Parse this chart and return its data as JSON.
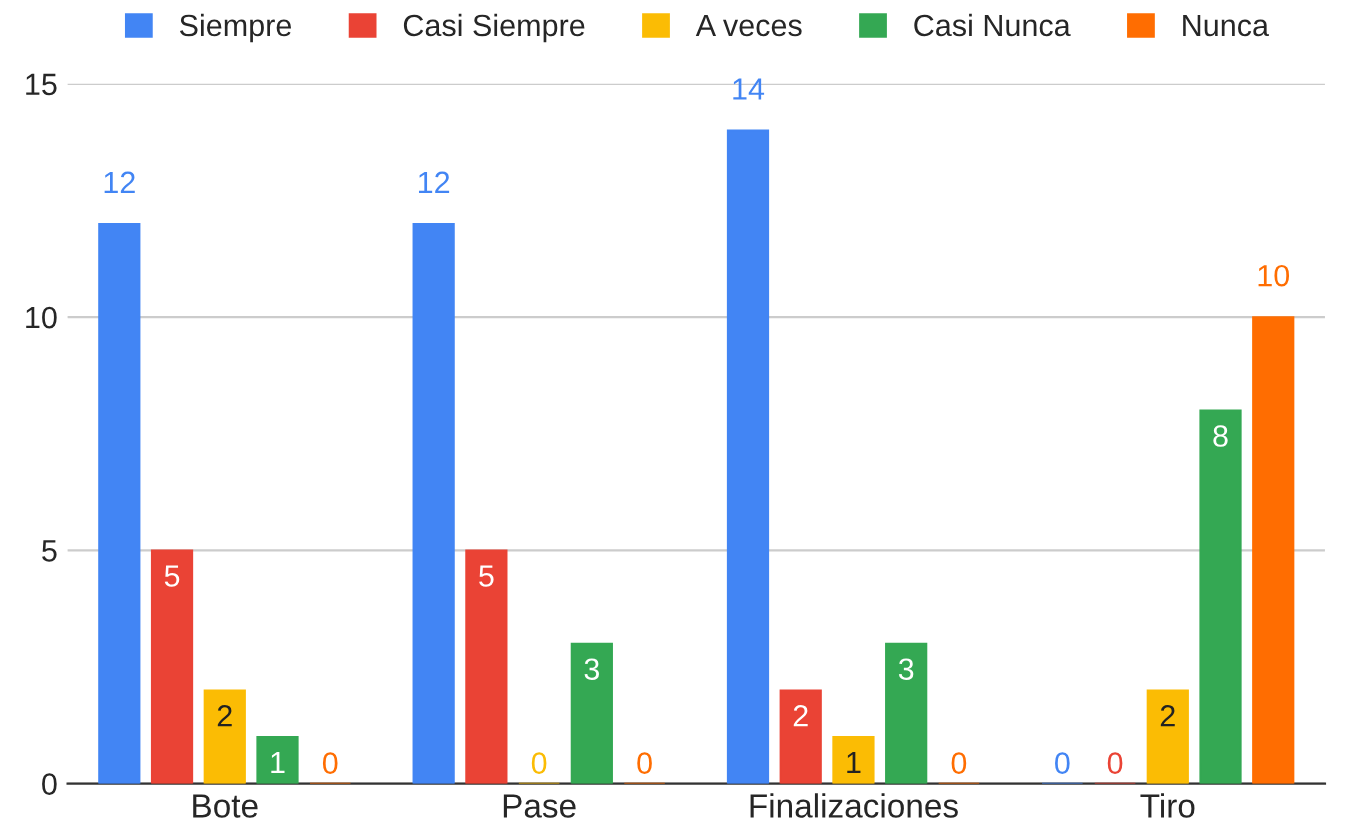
{
  "chart_data": {
    "type": "bar",
    "categories": [
      "Bote",
      "Pase",
      "Finalizaciones",
      "Tiro"
    ],
    "series": [
      {
        "name": "Siempre",
        "color": "#4285f4",
        "values": [
          12,
          12,
          14,
          0
        ]
      },
      {
        "name": "Casi Siempre",
        "color": "#ea4335",
        "values": [
          5,
          5,
          2,
          0
        ]
      },
      {
        "name": "A veces",
        "color": "#fbbc04",
        "values": [
          2,
          0,
          1,
          2
        ]
      },
      {
        "name": "Casi Nunca",
        "color": "#34a853",
        "values": [
          1,
          3,
          3,
          8
        ]
      },
      {
        "name": "Nunca",
        "color": "#ff6d01",
        "values": [
          0,
          0,
          0,
          10
        ]
      }
    ],
    "ylim": [
      0,
      15
    ],
    "yticks": [
      0,
      5,
      10,
      15
    ],
    "grid": "y",
    "legend": "top",
    "data_labels": true
  }
}
